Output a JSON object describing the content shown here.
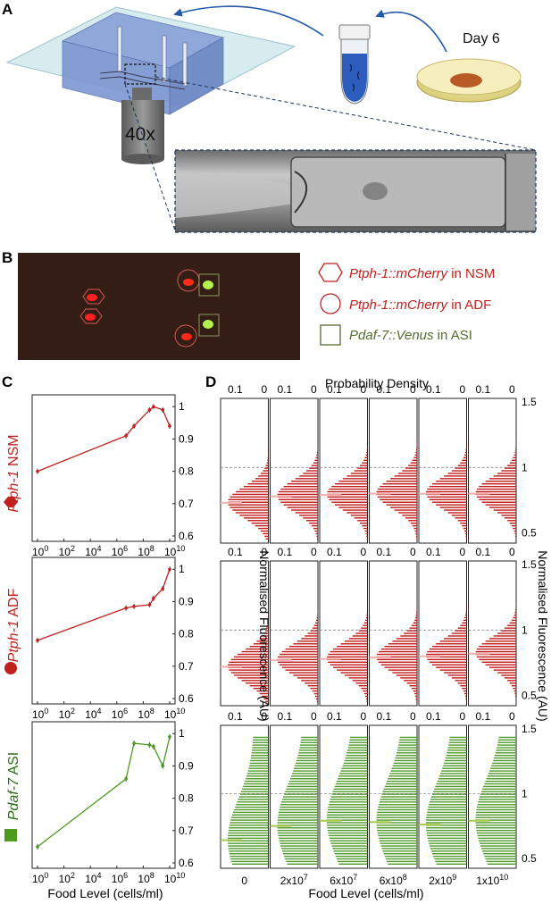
{
  "panels": {
    "A": {
      "letter": "A",
      "day_label": "Day 6",
      "objective_label": "40x"
    },
    "B": {
      "letter": "B",
      "legend": [
        {
          "symbol": "hexagon",
          "reporter": "Ptph-1::mCherry",
          "rest": " in NSM",
          "color": "#c0201e"
        },
        {
          "symbol": "circle",
          "reporter": "Ptph-1::mCherry",
          "rest": " in ADF",
          "color": "#c0201e"
        },
        {
          "symbol": "square",
          "reporter": "Pdaf-7::Venus",
          "rest": " in ASI",
          "color": "#556b2f"
        }
      ]
    },
    "C": {
      "letter": "C"
    },
    "D": {
      "letter": "D"
    }
  },
  "colors": {
    "red": "#c0201e",
    "green": "#4e9a1f",
    "hist_red": "#c21a1a",
    "hist_green": "#4f9a2a"
  },
  "chart_data": [
    {
      "type": "line",
      "panel": "C",
      "gene": "Ptph-1",
      "neuron": "NSM",
      "x": [
        1,
        5000000.0,
        20000000.0,
        300000000.0,
        600000000.0,
        3000000000.0,
        10000000000.0
      ],
      "y": [
        0.8,
        0.91,
        0.94,
        0.99,
        1.0,
        0.99,
        0.94
      ],
      "xscale": "log",
      "xlim": [
        1,
        10000000000.0
      ],
      "ylim": [
        0.6,
        1.02
      ],
      "yticks": [
        "0.6",
        "0.7",
        "0.8",
        "0.9",
        "1"
      ],
      "xticks": [
        "10",
        "10",
        "10",
        "10",
        "10",
        "10"
      ],
      "xtick_exp": [
        "0",
        "2",
        "4",
        "6",
        "8",
        "10"
      ]
    },
    {
      "type": "line",
      "panel": "C",
      "gene": "Ptph-1",
      "neuron": "ADF",
      "x": [
        1,
        5000000.0,
        20000000.0,
        300000000.0,
        600000000.0,
        3000000000.0,
        10000000000.0
      ],
      "y": [
        0.78,
        0.88,
        0.885,
        0.89,
        0.91,
        0.94,
        1.0
      ],
      "xscale": "log",
      "xlim": [
        1,
        10000000000.0
      ],
      "ylim": [
        0.6,
        1.02
      ],
      "yticks": [
        "0.6",
        "0.7",
        "0.8",
        "0.9",
        "1"
      ],
      "xticks": [
        "10",
        "10",
        "10",
        "10",
        "10",
        "10"
      ],
      "xtick_exp": [
        "0",
        "2",
        "4",
        "6",
        "8",
        "10"
      ]
    },
    {
      "type": "line",
      "panel": "C",
      "gene": "Pdaf-7",
      "neuron": "ASI",
      "x": [
        1,
        5000000.0,
        20000000.0,
        300000000.0,
        600000000.0,
        3000000000.0,
        10000000000.0
      ],
      "y": [
        0.65,
        0.86,
        0.97,
        0.965,
        0.96,
        0.9,
        0.99
      ],
      "xscale": "log",
      "xlim": [
        1,
        10000000000.0
      ],
      "ylim": [
        0.6,
        1.02
      ],
      "yticks": [
        "0.6",
        "0.7",
        "0.8",
        "0.9",
        "1"
      ],
      "xticks": [
        "10",
        "10",
        "10",
        "10",
        "10",
        "10"
      ],
      "xtick_exp": [
        "0",
        "2",
        "4",
        "6",
        "8",
        "10"
      ],
      "xlabel": "Food Level (cells/ml)"
    },
    {
      "type": "histogram",
      "panel": "D",
      "title": "Probability Density",
      "ylabel": "Normalised Fluorescence (AU)",
      "xlabel": "Food Level (cells/ml)",
      "conditions": [
        "0",
        "2x10",
        "6x10",
        "6x10",
        "2x10",
        "1x10"
      ],
      "condition_exp": [
        "",
        "7",
        "7",
        "8",
        "9",
        "10"
      ],
      "top_ticks": [
        "0.1",
        "0"
      ],
      "yticks": [
        "0.5",
        "1",
        "1.5"
      ],
      "ylim": [
        0.45,
        1.5
      ],
      "dashed_at": 1.0,
      "means": {
        "NSM": [
          0.73,
          0.78,
          0.79,
          0.8,
          0.8,
          0.8
        ],
        "ADF": [
          0.72,
          0.77,
          0.78,
          0.79,
          0.8,
          0.82
        ],
        "ASI": [
          0.64,
          0.75,
          0.79,
          0.78,
          0.76,
          0.79
        ]
      }
    }
  ]
}
